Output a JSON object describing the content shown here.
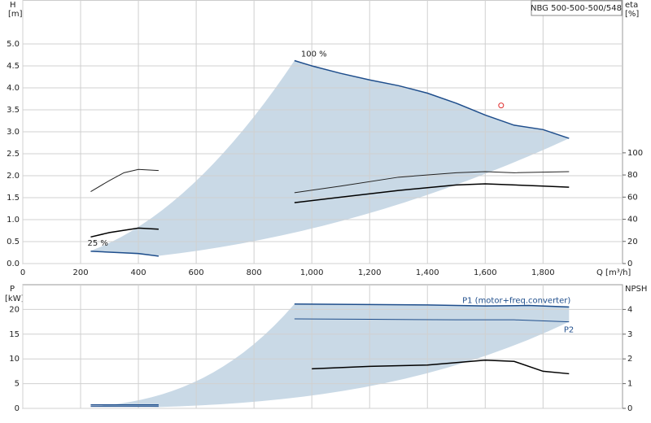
{
  "chart_data": [
    {
      "type": "line",
      "title": "NBG 500-500-500/548",
      "ylabel": "H",
      "yunit": "[m]",
      "y2label": "eta",
      "y2unit": "[%]",
      "xlabel": "Q [m³/h]",
      "annotations": [
        "25 %",
        "100 %"
      ],
      "xlim": [
        0,
        2075
      ],
      "xticks": [
        0,
        200,
        400,
        600,
        800,
        {
          "value": 1000,
          "label": "1,000"
        },
        {
          "value": 1200,
          "label": "1,200"
        },
        {
          "value": 1400,
          "label": "1,400"
        },
        {
          "value": 1600,
          "label": "1,600"
        },
        {
          "value": 1800,
          "label": "1,800"
        }
      ],
      "ylim": [
        0,
        6
      ],
      "yticks": [
        {
          "value": 0,
          "label": "0.0"
        },
        0.5,
        {
          "value": 1,
          "label": "1.0"
        },
        1.5,
        {
          "value": 2,
          "label": "2.0"
        },
        2.5,
        {
          "value": 3,
          "label": "3.0"
        },
        3.5,
        {
          "value": 4,
          "label": "4.0"
        },
        4.5,
        {
          "value": 5,
          "label": "5.0"
        }
      ],
      "y2lim": [
        0,
        238
      ],
      "y2ticks": [
        0,
        20,
        40,
        60,
        80,
        100
      ],
      "grid": true,
      "series": [
        {
          "color": "#1f4e8c",
          "width": 1.5,
          "x": [
            235,
            300,
            400,
            470
          ],
          "values": [
            0.28,
            0.26,
            0.23,
            0.17
          ]
        },
        {
          "color": "#1f4e8c",
          "width": 1.5,
          "x": [
            940,
            1000,
            1100,
            1200,
            1300,
            1400,
            1500,
            1600,
            1700,
            1800,
            1890
          ],
          "values": [
            4.62,
            4.5,
            4.33,
            4.18,
            4.05,
            3.88,
            3.65,
            3.38,
            3.15,
            3.05,
            2.85
          ]
        },
        {
          "color": "#222222",
          "width": 1,
          "axis": "y2",
          "x": [
            235,
            300,
            350,
            400,
            470
          ],
          "values": [
            65,
            75,
            82,
            85,
            84
          ]
        },
        {
          "color": "#222222",
          "width": 1,
          "axis": "y2",
          "x": [
            940,
            1100,
            1300,
            1500,
            1600,
            1700,
            1890
          ],
          "values": [
            64,
            70,
            78,
            82,
            83,
            82,
            83
          ]
        },
        {
          "color": "#000000",
          "width": 1.5,
          "axis": "y2",
          "x": [
            235,
            300,
            400,
            470
          ],
          "values": [
            24,
            28,
            32,
            31
          ]
        },
        {
          "color": "#000000",
          "width": 1.5,
          "axis": "y2",
          "x": [
            940,
            1100,
            1300,
            1500,
            1600,
            1800,
            1890
          ],
          "values": [
            55,
            60,
            66,
            71,
            72,
            70,
            69
          ]
        }
      ],
      "duty_point": {
        "x": 1655,
        "y": 3.6,
        "color": "#e03030"
      }
    },
    {
      "type": "line",
      "ylabel": "P",
      "yunit": "[kW]",
      "y2label": "NPSH",
      "xlim": [
        0,
        2075
      ],
      "ylim": [
        0,
        25
      ],
      "yticks": [
        0,
        5,
        10,
        15,
        20
      ],
      "y2lim": [
        0,
        5
      ],
      "y2ticks": [
        0,
        1,
        2,
        3,
        4
      ],
      "grid": true,
      "series": [
        {
          "color": "#1f4e8c",
          "width": 1.5,
          "x": [
            235,
            470
          ],
          "values": [
            0.7,
            0.7
          ]
        },
        {
          "name": "P1 (motor+freq.converter)",
          "color": "#1f4e8c",
          "width": 1.5,
          "x": [
            940,
            1200,
            1400,
            1600,
            1750,
            1890
          ],
          "values": [
            21.1,
            21,
            20.9,
            20.7,
            20.8,
            20.5
          ]
        },
        {
          "color": "#1f4e8c",
          "width": 1,
          "x": [
            235,
            470
          ],
          "values": [
            0.4,
            0.4
          ]
        },
        {
          "name": "P2",
          "color": "#1f4e8c",
          "width": 1,
          "x": [
            940,
            1200,
            1500,
            1700,
            1890
          ],
          "values": [
            18.1,
            18,
            17.9,
            17.9,
            17.5
          ]
        },
        {
          "color": "#000000",
          "width": 1.5,
          "axis": "y2",
          "x": [
            1000,
            1200,
            1400,
            1500,
            1600,
            1700,
            1800,
            1890
          ],
          "values": [
            1.6,
            1.7,
            1.75,
            1.85,
            1.95,
            1.9,
            1.5,
            1.4
          ]
        }
      ]
    }
  ]
}
